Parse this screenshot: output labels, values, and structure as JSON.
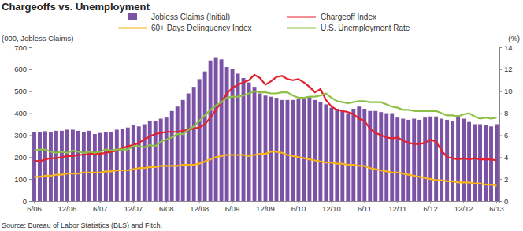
{
  "chart_data": {
    "type": "bar",
    "title": "Chargeoffs vs. Unemployment",
    "y_label": "(000, Jobless Claims)",
    "y2_label": "(%)",
    "source": "Source: Bureau of Labor Statistics (BLS) and Fitch.",
    "legend": "top",
    "categories": [
      "6/06",
      null,
      null,
      null,
      null,
      null,
      "12/06",
      null,
      null,
      null,
      null,
      null,
      "6/07",
      null,
      null,
      null,
      null,
      null,
      "12/07",
      null,
      null,
      null,
      null,
      null,
      "6/08",
      null,
      null,
      null,
      null,
      null,
      "12/08",
      null,
      null,
      null,
      null,
      null,
      "6/09",
      null,
      null,
      null,
      null,
      null,
      "12/09",
      null,
      null,
      null,
      null,
      null,
      "6/10",
      null,
      null,
      null,
      null,
      null,
      "12/10",
      null,
      null,
      null,
      null,
      null,
      "6/11",
      null,
      null,
      null,
      null,
      null,
      "12/11",
      null,
      null,
      null,
      null,
      null,
      "6/12",
      null,
      null,
      null,
      null,
      null,
      "12/12",
      null,
      null,
      null,
      null,
      null,
      "6/13"
    ],
    "ylim": [
      0,
      700
    ],
    "yticks": [
      0,
      100,
      200,
      300,
      400,
      500,
      600,
      700
    ],
    "y2lim": [
      0,
      14
    ],
    "y2ticks": [
      0,
      2,
      4,
      6,
      8,
      10,
      12,
      14
    ],
    "series": [
      {
        "name": "Jobless Claims (Initial)",
        "type": "bar",
        "color": "#7b52a6",
        "values": [
          315,
          315,
          318,
          315,
          320,
          320,
          325,
          325,
          320,
          315,
          320,
          305,
          310,
          315,
          315,
          325,
          330,
          335,
          345,
          340,
          350,
          365,
          365,
          375,
          380,
          410,
          430,
          460,
          490,
          520,
          555,
          590,
          640,
          655,
          645,
          610,
          600,
          580,
          560,
          540,
          520,
          490,
          480,
          475,
          470,
          460,
          460,
          460,
          465,
          470,
          475,
          460,
          450,
          440,
          425,
          420,
          410,
          400,
          420,
          430,
          420,
          410,
          410,
          405,
          400,
          400,
          380,
          375,
          370,
          375,
          370,
          380,
          385,
          385,
          375,
          370,
          365,
          390,
          375,
          360,
          350,
          350,
          345,
          340,
          350
        ]
      },
      {
        "name": "Chargeoff Index",
        "type": "line",
        "axis": "y2",
        "color": "#e3202b",
        "values": [
          3.7,
          3.6,
          3.8,
          3.9,
          3.9,
          4.0,
          4.1,
          4.1,
          4.2,
          4.2,
          4.3,
          4.3,
          4.3,
          4.4,
          4.5,
          4.6,
          4.8,
          5.0,
          5.1,
          5.3,
          5.6,
          5.9,
          6.1,
          6.2,
          6.3,
          6.3,
          6.3,
          6.4,
          6.5,
          6.6,
          6.7,
          7.0,
          7.6,
          8.3,
          9.0,
          9.8,
          10.3,
          10.6,
          10.8,
          11.0,
          11.5,
          11.2,
          10.6,
          10.9,
          11.3,
          11.4,
          11.1,
          11.0,
          11.1,
          10.8,
          10.4,
          9.9,
          10.2,
          9.2,
          8.6,
          8.3,
          8.2,
          8.1,
          7.9,
          7.5,
          7.3,
          6.6,
          6.2,
          6.0,
          5.8,
          5.7,
          5.8,
          5.5,
          5.3,
          5.2,
          5.2,
          5.3,
          5.6,
          5.4,
          4.6,
          4.0,
          3.9,
          3.8,
          3.9,
          3.8,
          3.9,
          3.8,
          3.8,
          3.8,
          3.7
        ]
      },
      {
        "name": "60+ Days Delinquency Index",
        "type": "line",
        "axis": "y2",
        "color": "#f6b419",
        "values": [
          2.2,
          2.2,
          2.3,
          2.3,
          2.4,
          2.4,
          2.5,
          2.5,
          2.5,
          2.6,
          2.6,
          2.6,
          2.6,
          2.7,
          2.7,
          2.8,
          2.8,
          2.8,
          2.9,
          3.0,
          3.0,
          3.1,
          3.1,
          3.2,
          3.2,
          3.2,
          3.2,
          3.3,
          3.3,
          3.3,
          3.4,
          3.6,
          3.8,
          4.0,
          4.1,
          4.2,
          4.2,
          4.2,
          4.2,
          4.1,
          4.2,
          4.3,
          4.3,
          4.5,
          4.5,
          4.4,
          4.2,
          4.1,
          4.0,
          3.9,
          3.8,
          3.7,
          3.6,
          3.5,
          3.5,
          3.4,
          3.4,
          3.3,
          3.3,
          3.2,
          3.2,
          3.0,
          2.9,
          2.8,
          2.7,
          2.6,
          2.6,
          2.5,
          2.4,
          2.3,
          2.2,
          2.1,
          2.0,
          1.9,
          1.9,
          1.8,
          1.8,
          1.7,
          1.7,
          1.7,
          1.6,
          1.6,
          1.5,
          1.5,
          1.4
        ]
      },
      {
        "name": "U.S. Unemployment Rate",
        "type": "line",
        "axis": "y2",
        "color": "#8fc046",
        "values": [
          4.6,
          4.7,
          4.7,
          4.5,
          4.4,
          4.5,
          4.4,
          4.6,
          4.5,
          4.4,
          4.5,
          4.4,
          4.5,
          4.7,
          4.6,
          4.7,
          4.7,
          4.7,
          5.0,
          5.0,
          4.9,
          5.1,
          5.0,
          5.4,
          5.6,
          5.8,
          6.1,
          6.1,
          6.5,
          6.8,
          7.3,
          7.8,
          8.3,
          8.7,
          9.0,
          9.4,
          9.5,
          9.5,
          9.6,
          9.8,
          10.0,
          9.9,
          9.9,
          9.8,
          9.8,
          9.9,
          9.9,
          9.6,
          9.4,
          9.4,
          9.5,
          9.5,
          9.6,
          9.8,
          9.4,
          9.1,
          9.0,
          8.9,
          9.0,
          9.1,
          9.1,
          9.0,
          9.0,
          9.0,
          8.8,
          8.6,
          8.5,
          8.3,
          8.3,
          8.2,
          8.2,
          8.2,
          8.2,
          8.2,
          8.0,
          7.8,
          7.8,
          7.7,
          7.9,
          8.0,
          7.7,
          7.5,
          7.6,
          7.5,
          7.6
        ]
      }
    ]
  }
}
